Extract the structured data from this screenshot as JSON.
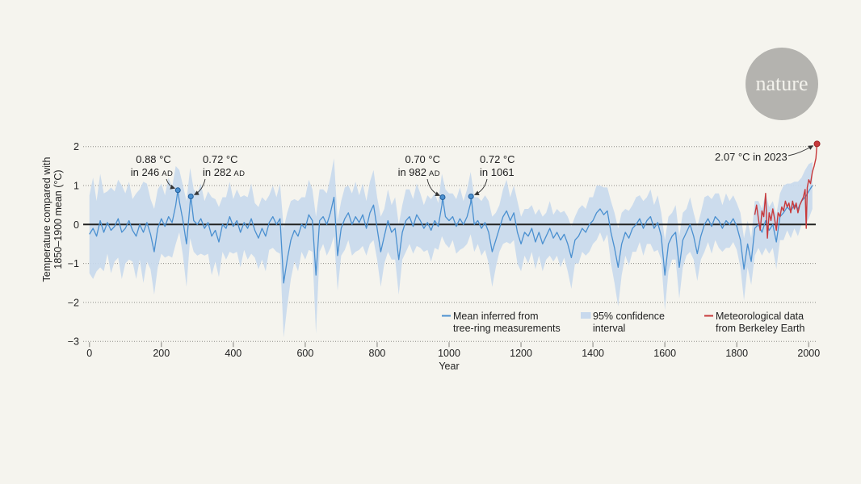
{
  "logo": {
    "text": "nature"
  },
  "chart_data": {
    "type": "line",
    "xlabel": "Year",
    "ylabel_lines": [
      "Temperature compared with",
      "1850–1900 mean (°C)"
    ],
    "xlim": [
      0,
      2025
    ],
    "ylim": [
      -3,
      2.2
    ],
    "x_ticks": [
      0,
      200,
      400,
      600,
      800,
      1000,
      1200,
      1400,
      1600,
      1800,
      2000
    ],
    "x_tick_labels": [
      "0",
      "200",
      "400",
      "600",
      "800",
      "1000",
      "1200",
      "1400",
      "1600",
      "1800",
      "2000"
    ],
    "y_ticks": [
      2,
      1,
      0,
      -1,
      -2,
      -3
    ],
    "y_tick_labels": [
      "2",
      "1",
      "0",
      "−1",
      "−2",
      "−3"
    ],
    "grid": true,
    "reference_line": 0,
    "legend_position": "bottom-right",
    "series": [
      {
        "label_lines": [
          "Mean inferred from",
          "tree-ring measurements"
        ],
        "color": "#4b90d0",
        "x_start": 0,
        "x_step": 10,
        "values": [
          -0.25,
          -0.1,
          -0.3,
          0.1,
          -0.2,
          0.05,
          -0.15,
          -0.05,
          0.15,
          -0.2,
          -0.1,
          0.1,
          -0.15,
          -0.3,
          0.0,
          -0.2,
          0.05,
          -0.25,
          -0.7,
          -0.1,
          0.15,
          -0.05,
          0.2,
          0.05,
          0.5,
          0.6,
          0.1,
          -0.5,
          0.55,
          0.1,
          0.0,
          0.15,
          -0.1,
          0.05,
          -0.3,
          -0.15,
          -0.45,
          0.0,
          -0.1,
          0.2,
          -0.05,
          0.1,
          -0.2,
          0.05,
          -0.1,
          0.15,
          -0.15,
          -0.35,
          -0.1,
          -0.3,
          0.05,
          0.2,
          0.0,
          0.15,
          -1.5,
          -0.9,
          -0.4,
          -0.15,
          -0.3,
          0.0,
          -0.1,
          0.25,
          0.1,
          -1.3,
          0.1,
          0.2,
          0.0,
          0.3,
          0.7,
          -0.8,
          -0.1,
          0.15,
          0.3,
          0.0,
          0.2,
          0.05,
          0.25,
          -0.1,
          0.3,
          0.5,
          -0.1,
          -0.7,
          -0.3,
          0.1,
          -0.2,
          -0.1,
          -0.9,
          -0.2,
          0.1,
          0.2,
          -0.05,
          0.25,
          0.1,
          -0.1,
          0.05,
          -0.15,
          0.1,
          -0.05,
          0.5,
          0.2,
          0.1,
          0.2,
          -0.05,
          0.15,
          0.0,
          0.2,
          0.55,
          0.0,
          0.1,
          -0.1,
          0.05,
          -0.2,
          -0.7,
          -0.4,
          -0.1,
          0.2,
          0.35,
          0.1,
          0.3,
          -0.2,
          -0.5,
          -0.2,
          -0.3,
          -0.1,
          -0.45,
          -0.2,
          -0.5,
          -0.3,
          -0.1,
          -0.35,
          -0.2,
          -0.4,
          -0.25,
          -0.5,
          -0.85,
          -0.4,
          -0.3,
          -0.1,
          -0.2,
          0.0,
          0.1,
          0.3,
          0.4,
          0.25,
          0.35,
          -0.2,
          -0.6,
          -1.1,
          -0.5,
          -0.2,
          -0.35,
          -0.1,
          0.0,
          0.15,
          -0.1,
          0.1,
          0.2,
          -0.1,
          0.05,
          -0.3,
          -1.3,
          -0.5,
          -0.3,
          -0.2,
          -1.1,
          -0.4,
          -0.2,
          0.0,
          -0.3,
          -0.75,
          -0.3,
          0.0,
          0.15,
          -0.05,
          0.2,
          0.1,
          -0.1,
          0.1,
          0.0,
          0.15,
          -0.05,
          -0.4,
          -1.15,
          -0.5,
          -0.95,
          -0.1,
          0.0,
          -0.2,
          0.1,
          -0.15,
          0.0,
          -0.45,
          0.2,
          0.3,
          0.45,
          0.35,
          0.5,
          0.4,
          0.6,
          0.7,
          0.85,
          1.0
        ]
      },
      {
        "label_lines": [
          "95% confidence",
          "interval"
        ],
        "color": "#c8d9ed",
        "x_start": 0,
        "x_step": 10,
        "half_width": [
          1.0,
          1.3,
          0.9,
          1.2,
          1.0,
          0.8,
          1.1,
          0.9,
          1.0,
          1.2,
          0.9,
          1.0,
          0.8,
          1.1,
          0.9,
          1.3,
          1.0,
          0.9,
          1.1,
          1.0,
          0.9,
          0.8,
          1.0,
          0.9,
          1.0,
          0.8,
          0.9,
          1.1,
          0.9,
          0.8,
          0.8,
          0.9,
          0.7,
          0.8,
          1.0,
          0.8,
          0.9,
          0.7,
          0.8,
          0.9,
          0.7,
          0.8,
          0.9,
          0.7,
          0.8,
          0.9,
          0.7,
          0.8,
          0.8,
          0.9,
          0.7,
          0.8,
          0.7,
          0.9,
          1.4,
          1.2,
          1.0,
          0.8,
          0.9,
          0.7,
          0.8,
          0.9,
          0.8,
          1.5,
          0.8,
          0.7,
          0.8,
          0.9,
          1.0,
          0.9,
          0.7,
          0.8,
          0.7,
          0.8,
          0.9,
          0.7,
          0.8,
          0.7,
          0.8,
          0.9,
          0.8,
          0.9,
          0.7,
          0.8,
          0.7,
          0.8,
          0.9,
          0.7,
          0.8,
          0.7,
          0.7,
          0.8,
          0.7,
          0.6,
          0.7,
          0.8,
          0.7,
          0.6,
          0.8,
          0.7,
          0.7,
          0.6,
          0.7,
          0.8,
          0.6,
          0.7,
          0.8,
          0.7,
          0.6,
          0.7,
          0.7,
          0.8,
          0.9,
          0.7,
          0.6,
          0.7,
          0.8,
          0.6,
          0.7,
          0.8,
          0.7,
          0.6,
          0.7,
          0.6,
          0.7,
          0.6,
          0.7,
          0.6,
          0.7,
          0.6,
          0.6,
          0.7,
          0.6,
          0.7,
          0.8,
          0.6,
          0.7,
          0.6,
          0.6,
          0.7,
          0.6,
          0.7,
          0.6,
          0.7,
          0.6,
          0.8,
          0.9,
          1.0,
          0.8,
          0.6,
          0.7,
          0.6,
          0.7,
          0.6,
          0.7,
          0.6,
          0.7,
          0.6,
          0.7,
          0.6,
          0.9,
          0.7,
          0.6,
          0.7,
          0.8,
          0.7,
          0.6,
          0.7,
          0.6,
          0.7,
          0.6,
          0.7,
          0.6,
          0.7,
          0.6,
          0.7,
          0.6,
          0.7,
          0.6,
          0.6,
          0.6,
          0.7,
          0.8,
          0.6,
          0.6,
          0.7,
          0.6,
          0.6,
          0.7,
          0.6,
          0.6,
          0.7,
          0.6,
          0.7,
          0.6,
          0.7,
          0.6,
          0.7,
          0.6,
          0.7,
          0.7,
          0.6
        ]
      },
      {
        "label_lines": [
          "Meteorological data",
          "from Berkeley Earth"
        ],
        "color": "#c8393b",
        "x": [
          1850,
          1855,
          1860,
          1865,
          1870,
          1875,
          1880,
          1885,
          1890,
          1895,
          1900,
          1905,
          1910,
          1915,
          1920,
          1925,
          1930,
          1935,
          1940,
          1945,
          1950,
          1955,
          1960,
          1965,
          1970,
          1975,
          1980,
          1985,
          1990,
          1993,
          1996,
          2000,
          2005,
          2010,
          2015,
          2020,
          2023
        ],
        "y": [
          0.25,
          0.5,
          0.15,
          -0.15,
          0.35,
          0.2,
          0.8,
          -0.35,
          0.3,
          0.1,
          0.4,
          0.15,
          -0.15,
          0.3,
          0.2,
          0.45,
          0.35,
          0.6,
          0.45,
          0.55,
          0.3,
          0.6,
          0.4,
          0.55,
          0.3,
          0.5,
          0.6,
          0.7,
          0.9,
          -0.1,
          0.95,
          1.15,
          1.05,
          1.35,
          1.5,
          1.7,
          2.07
        ]
      }
    ],
    "annotations": [
      {
        "year": 246,
        "value": 0.88,
        "series_index": 0,
        "value_label": "0.88 °C",
        "year_label": "in 246",
        "era": "AD"
      },
      {
        "year": 282,
        "value": 0.72,
        "series_index": 0,
        "value_label": "0.72 °C",
        "year_label": "in 282",
        "era": "AD"
      },
      {
        "year": 982,
        "value": 0.7,
        "series_index": 0,
        "value_label": "0.70 °C",
        "year_label": "in 982",
        "era": "AD"
      },
      {
        "year": 1061,
        "value": 0.72,
        "series_index": 0,
        "value_label": "0.72 °C",
        "year_label": "in 1061"
      },
      {
        "year": 2023,
        "value": 2.07,
        "series_index": 2,
        "label": "2.07 °C in 2023"
      }
    ]
  }
}
